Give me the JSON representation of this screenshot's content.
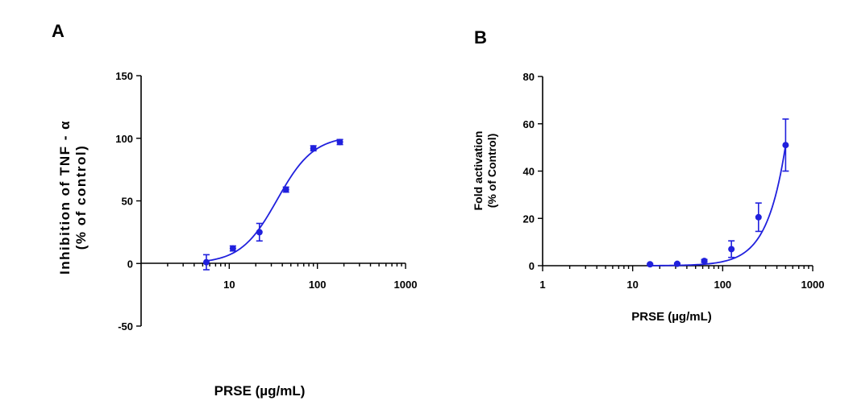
{
  "chart_data": [
    {
      "panel": "A",
      "type": "scatter",
      "xscale": "log",
      "xlabel": "PRSE (µg/mL)",
      "ylabel_line1": "Inhibition of TNF - α",
      "ylabel_line2": "(% of control)",
      "xlim": [
        1,
        1000
      ],
      "ylim": [
        -50,
        150
      ],
      "xticks": [
        10,
        100,
        1000
      ],
      "xtick_labels": [
        "10",
        "100",
        "1000"
      ],
      "yticks": [
        150,
        100,
        50,
        0,
        -50
      ],
      "ytick_labels": [
        "150",
        "100",
        "50",
        "0",
        "-50"
      ],
      "points": [
        {
          "x": 5.5,
          "y": 1,
          "err": 6
        },
        {
          "x": 11,
          "y": 12,
          "err": 2
        },
        {
          "x": 22,
          "y": 25,
          "err": 7
        },
        {
          "x": 44,
          "y": 59,
          "err": 2
        },
        {
          "x": 90,
          "y": 92,
          "err": 2
        },
        {
          "x": 180,
          "y": 97,
          "err": 2
        }
      ],
      "fit": {
        "model": "sigmoid",
        "bottom": 0,
        "top": 102,
        "ec50": 35,
        "hill": 2.1,
        "xmin": 5.5,
        "xmax": 180
      }
    },
    {
      "panel": "B",
      "type": "scatter",
      "xscale": "log",
      "xlabel": "PRSE (µg/mL)",
      "ylabel_line1": "Fold activation",
      "ylabel_line2": "(% of Control)",
      "xlim": [
        1,
        1000
      ],
      "ylim": [
        0,
        80
      ],
      "xticks": [
        1,
        10,
        100,
        1000
      ],
      "xtick_labels": [
        "1",
        "10",
        "100",
        "1000"
      ],
      "yticks": [
        80,
        60,
        40,
        20,
        0
      ],
      "ytick_labels": [
        "80",
        "60",
        "40",
        "20",
        "0"
      ],
      "points": [
        {
          "x": 15.6,
          "y": 0.6,
          "err": 0.3
        },
        {
          "x": 31.25,
          "y": 0.8,
          "err": 0.3
        },
        {
          "x": 62.5,
          "y": 2,
          "err": 0.6
        },
        {
          "x": 125,
          "y": 7,
          "err": 3.5
        },
        {
          "x": 250,
          "y": 20.5,
          "err": 6
        },
        {
          "x": 500,
          "y": 51,
          "err": 11
        }
      ],
      "fit": {
        "model": "power",
        "exponent": 2.11,
        "ref_x": 500,
        "ref_y": 51,
        "xmin": 15.6,
        "xmax": 500
      }
    }
  ]
}
